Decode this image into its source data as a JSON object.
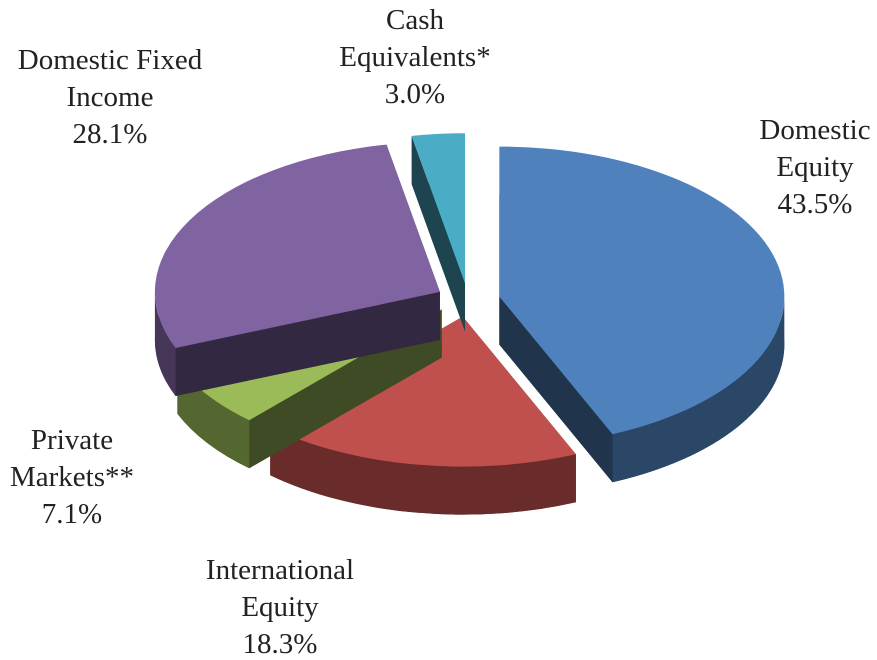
{
  "chart_data": {
    "type": "pie",
    "categories": [
      "Domestic Equity",
      "International Equity",
      "Private Markets**",
      "Domestic Fixed Income",
      "Cash Equivalents*"
    ],
    "values": [
      43.5,
      18.3,
      7.1,
      28.1,
      3.0
    ],
    "value_labels": [
      "43.5%",
      "18.3%",
      "7.1%",
      "28.1%",
      "3.0%"
    ],
    "colors": [
      "#4f81bd",
      "#c0504d",
      "#9bbb59",
      "#8064a2",
      "#4bacc6"
    ]
  }
}
